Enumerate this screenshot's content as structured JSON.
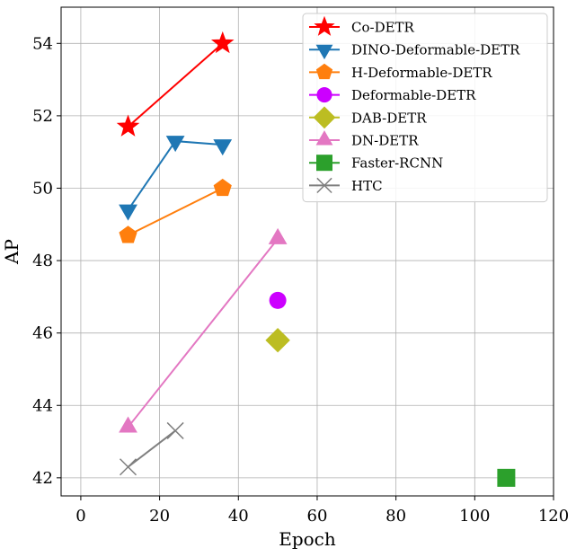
{
  "chart_data": {
    "type": "line",
    "title": "",
    "xlabel": "Epoch",
    "ylabel": "AP",
    "xlim": [
      -5,
      120
    ],
    "ylim": [
      41.5,
      55
    ],
    "xticks": [
      0,
      20,
      40,
      60,
      80,
      100,
      120
    ],
    "yticks": [
      42,
      44,
      46,
      48,
      50,
      52,
      54
    ],
    "grid": true,
    "legend_position": "top-right",
    "series": [
      {
        "name": "Co-DETR",
        "color": "#ff0000",
        "marker": "star",
        "x": [
          12,
          36
        ],
        "y": [
          51.7,
          54.0
        ]
      },
      {
        "name": "DINO-Deformable-DETR",
        "color": "#1f77b4",
        "marker": "triangle-down",
        "x": [
          12,
          24,
          36
        ],
        "y": [
          49.4,
          51.3,
          51.2
        ]
      },
      {
        "name": "H-Deformable-DETR",
        "color": "#ff7f0e",
        "marker": "pentagon",
        "x": [
          12,
          36
        ],
        "y": [
          48.7,
          50.0
        ]
      },
      {
        "name": "Deformable-DETR",
        "color": "#cc00ff",
        "marker": "circle",
        "x": [
          50
        ],
        "y": [
          46.9
        ]
      },
      {
        "name": "DAB-DETR",
        "color": "#bcbd22",
        "marker": "diamond",
        "x": [
          50
        ],
        "y": [
          45.8
        ]
      },
      {
        "name": "DN-DETR",
        "color": "#e377c2",
        "marker": "triangle-up",
        "x": [
          12,
          50
        ],
        "y": [
          43.4,
          48.6
        ]
      },
      {
        "name": "Faster-RCNN",
        "color": "#2ca02c",
        "marker": "square",
        "x": [
          108
        ],
        "y": [
          42.0
        ]
      },
      {
        "name": "HTC",
        "color": "#7f7f7f",
        "marker": "x",
        "x": [
          12,
          24
        ],
        "y": [
          42.3,
          43.3
        ]
      }
    ]
  }
}
